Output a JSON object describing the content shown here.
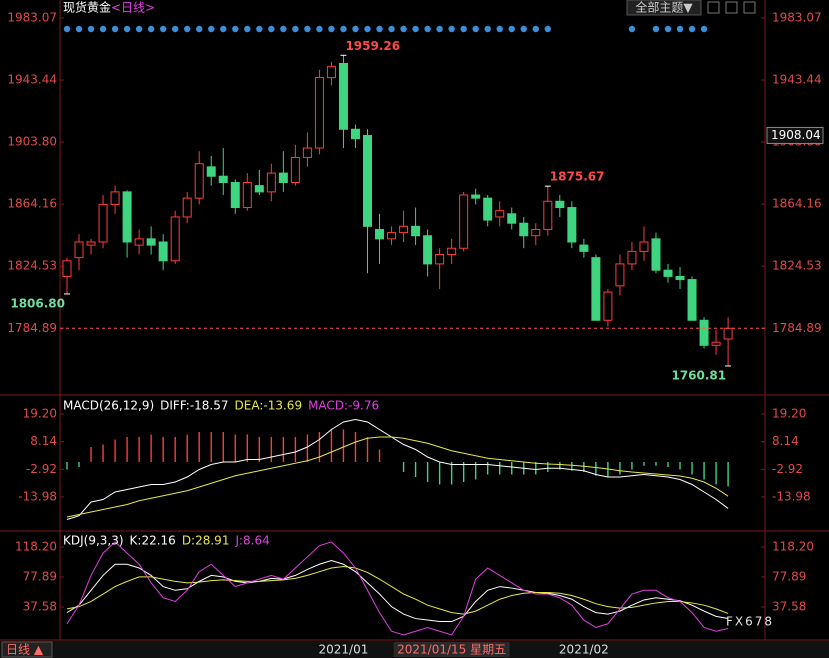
{
  "header": {
    "title": "现货黄金",
    "period": "<日线>",
    "theme_button": "全部主题▼"
  },
  "footer": {
    "period_button": "日线 ▲"
  },
  "watermark": "FX678",
  "chart_data": [
    {
      "type": "candlestick",
      "categories": [
        null,
        null,
        null,
        null,
        null,
        null,
        null,
        null,
        null,
        null,
        null,
        null,
        null,
        null,
        null,
        null,
        null,
        null,
        null,
        null,
        null,
        null,
        null,
        "2021/01",
        null,
        null,
        null,
        null,
        null,
        null,
        null,
        null,
        "2021/01/15 星期五",
        null,
        null,
        null,
        null,
        null,
        null,
        null,
        null,
        null,
        null,
        "2021/02",
        null,
        null,
        null,
        null,
        null,
        null,
        null,
        null,
        null,
        null,
        null,
        null
      ],
      "open": [
        1818,
        1830,
        1838,
        1840,
        1864,
        1872,
        1838,
        1842,
        1840,
        1828,
        1856,
        1868,
        1888,
        1882,
        1878,
        1862,
        1876,
        1872,
        1884,
        1878,
        1894,
        1900,
        1945,
        1954,
        1912,
        1908,
        1848,
        1842,
        1846,
        1850,
        1844,
        1826,
        1832,
        1836,
        1870,
        1868,
        1856,
        1858,
        1852,
        1844,
        1848,
        1866,
        1862,
        1838,
        1830,
        1790,
        1812,
        1826,
        1834,
        1842,
        1822,
        1818,
        1816,
        1790,
        1774,
        1778
      ],
      "high": [
        1830,
        1845,
        1842,
        1870,
        1876,
        1873,
        1848,
        1850,
        1845,
        1860,
        1872,
        1898,
        1895,
        1900,
        1880,
        1884,
        1886,
        1890,
        1898,
        1902,
        1910,
        1950,
        1955,
        1959.26,
        1915,
        1912,
        1858,
        1850,
        1860,
        1862,
        1848,
        1836,
        1842,
        1872,
        1874,
        1870,
        1866,
        1862,
        1856,
        1852,
        1875.67,
        1870,
        1866,
        1842,
        1832,
        1810,
        1832,
        1840,
        1850,
        1846,
        1826,
        1824,
        1818,
        1792,
        1784,
        1792
      ],
      "low": [
        1806.8,
        1822,
        1832,
        1836,
        1858,
        1830,
        1832,
        1832,
        1822,
        1826,
        1852,
        1864,
        1876,
        1870,
        1858,
        1860,
        1870,
        1866,
        1872,
        1876,
        1888,
        1896,
        1940,
        1900,
        1900,
        1820,
        1826,
        1838,
        1840,
        1838,
        1818,
        1810,
        1826,
        1834,
        1864,
        1850,
        1850,
        1848,
        1836,
        1838,
        1844,
        1856,
        1836,
        1830,
        1790,
        1786,
        1806,
        1822,
        1828,
        1820,
        1814,
        1810,
        1790,
        1772,
        1768,
        1760.81
      ],
      "close": [
        1828,
        1840,
        1840,
        1864,
        1872,
        1840,
        1842,
        1838,
        1828,
        1856,
        1868,
        1890,
        1882,
        1878,
        1862,
        1878,
        1872,
        1884,
        1878,
        1894,
        1900,
        1945,
        1952,
        1912,
        1906,
        1850,
        1842,
        1846,
        1850,
        1844,
        1826,
        1832,
        1836,
        1870,
        1868,
        1854,
        1860,
        1852,
        1844,
        1848,
        1866,
        1862,
        1840,
        1834,
        1790,
        1808,
        1826,
        1834,
        1840,
        1822,
        1818,
        1816,
        1790,
        1774,
        1776,
        1784.89
      ],
      "up_color": "#ff3b3b",
      "down_color": "#3fd47f",
      "annotations": [
        {
          "value": 1959.26,
          "label": "1959.26"
        },
        {
          "value": 1875.67,
          "label": "1875.67"
        },
        {
          "value": 1806.8,
          "label": "1806.80"
        },
        {
          "value": 1760.81,
          "label": "1760.81"
        }
      ],
      "last_close_line": true,
      "cursor_price": 1908.04,
      "ylim": [
        1743.55,
        1984.34
      ],
      "yticks": [
        1983.07,
        1943.44,
        {
          "value": 1903.8,
          "label": "1903.80"
        },
        1864.16,
        1824.53,
        1784.89
      ]
    },
    {
      "type": "macd",
      "title": "MACD(26,12,9)",
      "series": [
        {
          "label": "DIFF:-18.57",
          "kind": "line",
          "color": "#ffffff",
          "values": [
            -23,
            -21.5,
            -16,
            -15,
            -12,
            -11,
            -10,
            -9,
            -9,
            -8,
            -6,
            -3,
            -1,
            0,
            0,
            1,
            1,
            2,
            3,
            4,
            6,
            9,
            13,
            16,
            17,
            16,
            13,
            10,
            7,
            5,
            2,
            0,
            -1,
            -1,
            -1,
            -1,
            -1.5,
            -2,
            -2.5,
            -3,
            -2.5,
            -2.5,
            -3,
            -3.5,
            -5,
            -6,
            -6,
            -5.5,
            -5,
            -5.5,
            -6,
            -7,
            -9,
            -12,
            -15,
            -18.57
          ]
        },
        {
          "label": "DEA:-13.69",
          "kind": "line",
          "color": "#e8e84a",
          "values": [
            -22,
            -21,
            -20,
            -19,
            -18,
            -17,
            -15.5,
            -14.5,
            -13.5,
            -12.5,
            -11.5,
            -10,
            -8.5,
            -7,
            -5.5,
            -4.5,
            -3.5,
            -2.5,
            -1.5,
            -0.5,
            0.5,
            2,
            4,
            6,
            8,
            9.5,
            10,
            10,
            9.5,
            8.5,
            7.5,
            6,
            4.5,
            3.5,
            2.5,
            1.5,
            1,
            0.5,
            0,
            -0.5,
            -0.8,
            -1,
            -1.3,
            -1.7,
            -2.2,
            -2.8,
            -3.5,
            -4,
            -4.4,
            -4.8,
            -5.2,
            -5.6,
            -6.5,
            -8,
            -10.5,
            -13.69
          ]
        },
        {
          "label": "MACD:-9.76",
          "kind": "bar",
          "color": "#e040e0",
          "up_color": "#ff3b3b",
          "down_color": "#3fd47f",
          "values": [
            -3,
            -2,
            6,
            7,
            9,
            10,
            10,
            11,
            10,
            10,
            11,
            12,
            12,
            12,
            11,
            11,
            10,
            10,
            10,
            10,
            11,
            12,
            13,
            13,
            12,
            10,
            5,
            0,
            -4,
            -6,
            -8,
            -9,
            -9,
            -8,
            -7,
            -5,
            -5,
            -5,
            -5,
            -5,
            -4,
            -3,
            -3.5,
            -4,
            -5.5,
            -6,
            -5,
            -3,
            -1.5,
            -1.5,
            -2,
            -3,
            -5,
            -7,
            -9,
            -9.76
          ]
        }
      ],
      "ylim": [
        -27.2,
        25.6
      ],
      "yticks": [
        {
          "value": 19.2,
          "label": "19.20"
        },
        8.14,
        -2.92,
        -13.98
      ]
    },
    {
      "type": "line",
      "title": "KDJ(9,3,3)",
      "series": [
        {
          "label": "K:22.16",
          "kind": "line",
          "color": "#ffffff",
          "values": [
            30,
            40,
            60,
            80,
            95,
            95,
            90,
            80,
            65,
            60,
            62,
            72,
            80,
            78,
            72,
            70,
            72,
            76,
            75,
            80,
            88,
            95,
            100,
            95,
            85,
            70,
            55,
            38,
            28,
            22,
            20,
            18,
            18,
            25,
            45,
            60,
            65,
            63,
            60,
            57,
            56,
            53,
            48,
            38,
            30,
            28,
            32,
            40,
            47,
            50,
            48,
            46,
            40,
            32,
            25,
            22.16
          ]
        },
        {
          "label": "D:28.91",
          "kind": "line",
          "color": "#e8e84a",
          "values": [
            35,
            38,
            45,
            55,
            65,
            72,
            78,
            78,
            75,
            72,
            70,
            71,
            73,
            74,
            73,
            72,
            72,
            73,
            74,
            76,
            80,
            85,
            90,
            92,
            90,
            84,
            75,
            65,
            55,
            48,
            40,
            35,
            30,
            28,
            32,
            40,
            48,
            53,
            56,
            57,
            57,
            56,
            53,
            48,
            42,
            38,
            36,
            37,
            40,
            43,
            45,
            45,
            43,
            40,
            35,
            28.91
          ]
        },
        {
          "label": "J:8.64",
          "kind": "line",
          "color": "#e040e0",
          "values": [
            15,
            40,
            80,
            110,
            125,
            110,
            95,
            70,
            50,
            45,
            60,
            85,
            95,
            80,
            65,
            70,
            75,
            80,
            75,
            90,
            105,
            120,
            125,
            110,
            90,
            60,
            30,
            5,
            0,
            5,
            10,
            5,
            0,
            25,
            75,
            90,
            80,
            70,
            60,
            55,
            55,
            50,
            40,
            20,
            10,
            15,
            35,
            55,
            60,
            60,
            50,
            45,
            30,
            10,
            5,
            8.64
          ]
        }
      ],
      "ylim": [
        -6.8,
        137
      ],
      "yticks": [
        {
          "value": 118.2,
          "label": "118.20"
        },
        77.89,
        37.58
      ]
    }
  ]
}
